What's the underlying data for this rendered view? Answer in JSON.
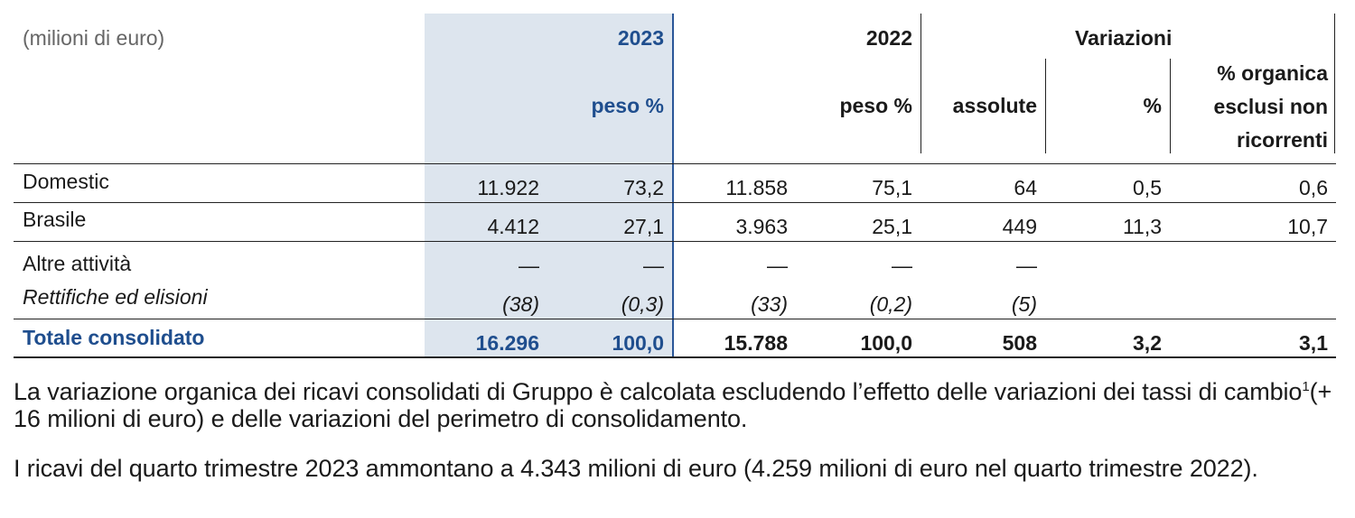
{
  "header": {
    "unit": "(milioni di euro)",
    "year_2023": "2023",
    "year_2022": "2022",
    "variazioni": "Variazioni",
    "peso_2023": "peso %",
    "peso_2022": "peso %",
    "assolute": "assolute",
    "pct": "%",
    "organica_l1": "% organica",
    "organica_l2": "esclusi non",
    "organica_l3": "ricorrenti"
  },
  "rows": [
    {
      "label": "Domestic",
      "v2023": "11.922",
      "p2023": "73,2",
      "v2022": "11.858",
      "p2022": "75,1",
      "abs": "64",
      "pct": "0,5",
      "org": "0,6"
    },
    {
      "label": "Brasile",
      "v2023": "4.412",
      "p2023": "27,1",
      "v2022": "3.963",
      "p2022": "25,1",
      "abs": "449",
      "pct": "11,3",
      "org": "10,7"
    },
    {
      "label": "Altre attività",
      "v2023": "—",
      "p2023": "—",
      "v2022": "—",
      "p2022": "—",
      "abs": "—",
      "pct": "",
      "org": ""
    },
    {
      "label": "Rettifiche ed elisioni",
      "v2023": "(38)",
      "p2023": "(0,3)",
      "v2022": "(33)",
      "p2022": "(0,2)",
      "abs": "(5)",
      "pct": "",
      "org": ""
    },
    {
      "label": "Totale consolidato",
      "v2023": "16.296",
      "p2023": "100,0",
      "v2022": "15.788",
      "p2022": "100,0",
      "abs": "508",
      "pct": "3,2",
      "org": "3,1"
    }
  ],
  "notes": {
    "p1_part1": "La variazione organica dei ricavi consolidati di Gruppo è calcolata escludendo l’effetto delle variazioni dei tassi di cambio",
    "p1_sup": "1",
    "p1_part2": "(+ 16 milioni di euro) e delle variazioni del perimetro di consolidamento.",
    "p2": "I ricavi del quarto trimestre 2023 ammontano a 4.343 milioni di euro (4.259 milioni di euro nel quarto trimestre 2022)."
  },
  "colors": {
    "accent_blue": "#1f4e8e",
    "highlight": "#dde5ee"
  }
}
